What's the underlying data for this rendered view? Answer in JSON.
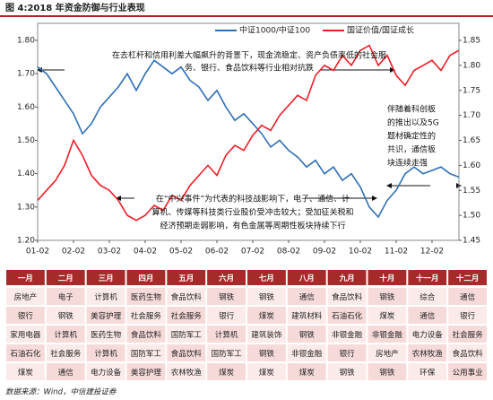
{
  "title": "图 4:2018 年资金防御与行业表现",
  "chart_data": {
    "type": "line",
    "categories": [
      "01-02",
      null,
      null,
      null,
      "02-02",
      null,
      null,
      null,
      "03-02",
      null,
      null,
      null,
      "04-02",
      null,
      null,
      null,
      "05-02",
      null,
      null,
      null,
      "06-02",
      null,
      null,
      null,
      "07-02",
      null,
      null,
      null,
      "08-02",
      null,
      null,
      null,
      "09-02",
      null,
      null,
      null,
      "10-02",
      null,
      null,
      null,
      "11-02",
      null,
      null,
      null,
      "12-02",
      null,
      null,
      null
    ],
    "series": [
      {
        "name": "中证1000/中证100",
        "color": "#2e6fb5",
        "axis": "y",
        "values": [
          1.72,
          1.7,
          1.66,
          1.62,
          1.58,
          1.52,
          1.55,
          1.6,
          1.63,
          1.66,
          1.7,
          1.65,
          1.7,
          1.74,
          1.72,
          1.7,
          1.72,
          1.68,
          1.66,
          1.62,
          1.65,
          1.6,
          1.56,
          1.58,
          1.55,
          1.52,
          1.48,
          1.5,
          1.47,
          1.45,
          1.42,
          1.44,
          1.4,
          1.42,
          1.38,
          1.4,
          1.36,
          1.3,
          1.27,
          1.32,
          1.35,
          1.4,
          1.42,
          1.4,
          1.41,
          1.42,
          1.4,
          1.39
        ]
      },
      {
        "name": "国证价值/国证成长",
        "color": "#ee1c24",
        "axis": "y2",
        "values": [
          1.53,
          1.55,
          1.57,
          1.6,
          1.65,
          1.62,
          1.58,
          1.56,
          1.55,
          1.53,
          1.5,
          1.49,
          1.5,
          1.52,
          1.51,
          1.54,
          1.53,
          1.56,
          1.58,
          1.6,
          1.58,
          1.62,
          1.64,
          1.63,
          1.66,
          1.68,
          1.67,
          1.7,
          1.72,
          1.74,
          1.73,
          1.78,
          1.8,
          1.79,
          1.82,
          1.8,
          1.83,
          1.84,
          1.8,
          1.82,
          1.78,
          1.76,
          1.79,
          1.8,
          1.81,
          1.79,
          1.82,
          1.83
        ]
      }
    ],
    "ylim": [
      1.2,
      1.8
    ],
    "yticks": [
      {
        "value": 1.2,
        "label": "1.20"
      },
      {
        "value": 1.3,
        "label": "1.30"
      },
      {
        "value": 1.4,
        "label": "1.40"
      },
      {
        "value": 1.5,
        "label": "1.50"
      },
      {
        "value": 1.6,
        "label": "1.60"
      },
      {
        "value": 1.7,
        "label": "1.70"
      },
      {
        "value": 1.8,
        "label": "1.80"
      }
    ],
    "y2lim": [
      1.45,
      1.85
    ],
    "y2ticks": [
      {
        "value": 1.45,
        "label": "1.45"
      },
      {
        "value": 1.5,
        "label": "1.50"
      },
      {
        "value": 1.55,
        "label": "1.55"
      },
      {
        "value": 1.6,
        "label": "1.60"
      },
      {
        "value": 1.65,
        "label": "1.65"
      },
      {
        "value": 1.7,
        "label": "1.70"
      },
      {
        "value": 1.75,
        "label": "1.75"
      },
      {
        "value": 1.8,
        "label": "1.80"
      },
      {
        "value": 1.85,
        "label": "1.85"
      }
    ],
    "legend": "top",
    "annotations": [
      [
        "在去杠杆和信用利差大幅飙升的背景下，现金流稳定、资产负债率低的社会服",
        "务、银行、食品饮料等行业相对抗跌"
      ],
      [
        "伴随着科创板",
        "的推出以及5G",
        "题材确定性的",
        "共识，通信板",
        "块连续走强"
      ],
      [
        "在“中兴事件”为代表的科技战影响下，电子、通信、计",
        "算机、传媒等科技类行业股价受冲击较大；受加征关税和",
        "经济预期走弱影响，有色金属等周期性板块持续下行"
      ]
    ]
  },
  "table": {
    "header": [
      "一月",
      "二月",
      "三月",
      "四月",
      "五月",
      "六月",
      "七月",
      "八月",
      "九月",
      "十月",
      "十一月",
      "十二月"
    ],
    "rows": [
      [
        "房地产",
        "电子",
        "计算机",
        "医药生物",
        "食品饮料",
        "钢铁",
        "钢铁",
        "通信",
        "食品饮料",
        "钢铁",
        "综合",
        "通信"
      ],
      [
        "银行",
        "钢铁",
        "美容护理",
        "社会服务",
        "社会服务",
        "银行",
        "煤炭",
        "建筑材料",
        "石油石化",
        "煤炭",
        "通信",
        "银行"
      ],
      [
        "家用电器",
        "计算机",
        "医药生物",
        "食品饮料",
        "国防军工",
        "计算机",
        "建筑装饰",
        "钢铁",
        "非银金融",
        "非银金融",
        "电力设备",
        "社会服务"
      ],
      [
        "石油石化",
        "社会服务",
        "计算机",
        "国防军工",
        "食品饮料",
        "国防军工",
        "钢铁",
        "非银金融",
        "银行",
        "房地产",
        "农林牧渔",
        "食品饮料"
      ],
      [
        "煤炭",
        "通信",
        "电力设备",
        "美容护理",
        "农林牧渔",
        "煤炭",
        "煤炭",
        "煤炭",
        "钢铁",
        "钢铁",
        "环保",
        "公用事业"
      ]
    ]
  },
  "source": "数据来源：Wind，中信建投证券"
}
